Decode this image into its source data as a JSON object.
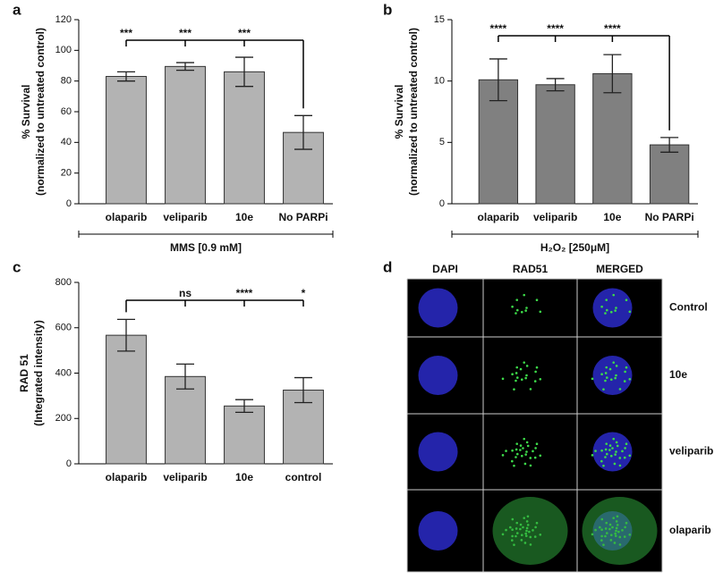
{
  "chart_data": [
    {
      "type": "bar",
      "label": "a",
      "ylabel": [
        "% Survival",
        "(normalized to untreated control)"
      ],
      "xlabel": "MMS [0.9 mM]",
      "categories": [
        "olaparib",
        "veliparib",
        "10e",
        "No PARPi"
      ],
      "values": [
        83,
        89.5,
        86,
        46.5
      ],
      "errors": [
        3,
        2.5,
        9.5,
        11
      ],
      "color": "#b3b3b3",
      "ylim": [
        0,
        120
      ],
      "yticks": [
        0,
        20,
        40,
        60,
        80,
        100,
        120
      ],
      "annotations": [
        "***",
        "***",
        "***",
        null
      ]
    },
    {
      "type": "bar",
      "label": "b",
      "ylabel": [
        "% Survival",
        "(normalized to untreated control)"
      ],
      "xlabel": "H₂O₂ [250μM]",
      "categories": [
        "olaparib",
        "veliparib",
        "10e",
        "No PARPi"
      ],
      "values": [
        10.1,
        9.7,
        10.6,
        4.8
      ],
      "errors": [
        1.7,
        0.5,
        1.55,
        0.6
      ],
      "color": "#808080",
      "ylim": [
        0,
        15
      ],
      "yticks": [
        0,
        5,
        10,
        15
      ],
      "annotations": [
        "****",
        "****",
        "****",
        null
      ]
    },
    {
      "type": "bar",
      "label": "c",
      "ylabel": [
        "RAD 51",
        "(Integrated intensity)"
      ],
      "categories": [
        "olaparib",
        "veliparib",
        "10e",
        "control"
      ],
      "values": [
        567,
        385,
        255,
        325
      ],
      "errors": [
        70,
        55,
        28,
        55
      ],
      "color": "#b3b3b3",
      "ylim": [
        0,
        800
      ],
      "yticks": [
        0,
        200,
        400,
        600,
        800
      ],
      "annotations": [
        null,
        "ns",
        "****",
        "*"
      ]
    }
  ],
  "image_panel": {
    "label": "d",
    "columns": [
      "DAPI",
      "RAD51",
      "MERGED"
    ],
    "rows": [
      "Control",
      "10e",
      "veliparib",
      "olaparib"
    ]
  }
}
